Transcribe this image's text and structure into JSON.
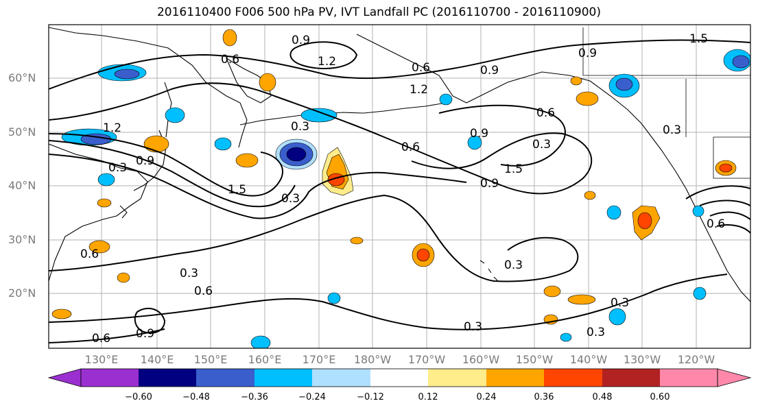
{
  "title": "2016110400 F006 500 hPa PV, IVT Landfall PC (2016110700 - 2016110900)",
  "lat_labels": [
    "60°N",
    "50°N",
    "40°N",
    "30°N",
    "20°N"
  ],
  "lon_labels": [
    "130°E",
    "140°E",
    "150°E",
    "160°E",
    "170°E",
    "180°W",
    "170°W",
    "160°W",
    "150°W",
    "140°W",
    "130°W",
    "120°W"
  ],
  "colorbar": {
    "ticks": [
      "−0.60",
      "−0.48",
      "−0.36",
      "−0.24",
      "−0.12",
      "0.12",
      "0.24",
      "0.36",
      "0.48",
      "0.60"
    ],
    "colors": [
      "#9b30d0",
      "#000080",
      "#3a5fcd",
      "#00bfff",
      "#b0e0ff",
      "#ffffff",
      "#ffec8b",
      "#ffa500",
      "#ff4500",
      "#b22222",
      "#ff88aa"
    ]
  },
  "contour_labels": [
    "0.9",
    "1.5",
    "0.6",
    "1.2",
    "0.9",
    "0.6",
    "1.2",
    "0.9",
    "0.6",
    "0.3",
    "0.6",
    "0.3",
    "1.2",
    "1.5",
    "0.9",
    "0.3",
    "1.5",
    "0.3",
    "0.9",
    "0.6",
    "0.3",
    "0.6",
    "0.3",
    "0.3",
    "0.3",
    "0.6",
    "0.9",
    "0.3",
    "0.3",
    "0.6",
    "0.9"
  ]
}
